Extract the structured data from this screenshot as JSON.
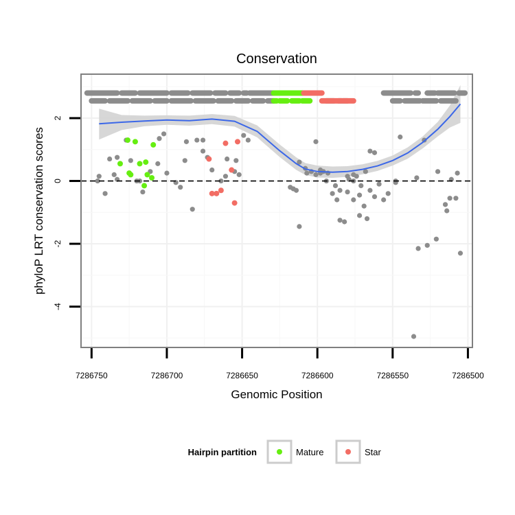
{
  "chart_data": {
    "type": "scatter",
    "title": "Conservation",
    "xlabel": "Genomic Position",
    "ylabel": "phyloP LRT conservation scores",
    "x_reversed": true,
    "xlim": [
      7286500,
      7286750
    ],
    "ylim": [
      -5.3,
      3.4
    ],
    "x_ticks": [
      7286750,
      7286700,
      7286650,
      7286600,
      7286550,
      7286500
    ],
    "x_tick_labels": [
      "7286750",
      "7286700",
      "7286650",
      "7286600",
      "7286550",
      "7286500"
    ],
    "y_ticks": [
      2,
      0,
      -2,
      -4
    ],
    "y_tick_labels": [
      "2",
      "0",
      "-2",
      "-4"
    ],
    "reference_line": {
      "y": 0,
      "style": "dashed"
    },
    "grid": true,
    "colors": {
      "other": "#8c8c8c",
      "mature": "#66ee11",
      "star": "#f26d64",
      "smooth": "#3b67e8",
      "ribbon": "#d3d3d3",
      "panel_border": "#7f7f7f"
    },
    "legend": {
      "title": "Hairpin partition",
      "position": "bottom",
      "entries": [
        {
          "label": "Mature",
          "color": "#66ee11"
        },
        {
          "label": "Star",
          "color": "#f26d64"
        }
      ]
    },
    "series": [
      {
        "key": "other",
        "x": [
          7286746,
          7286741,
          7286738,
          7286735,
          7286733,
          7286727,
          7286724,
          7286718,
          7286716,
          7286713,
          7286711,
          7286705,
          7286702,
          7286700,
          7286694,
          7286691,
          7286688,
          7286683,
          7286680,
          7286676,
          7286673,
          7286670,
          7286664,
          7286661,
          7286655,
          7286652,
          7286649,
          7286646,
          7286612,
          7286607,
          7286601,
          7286596,
          7286593,
          7286590,
          7286587,
          7286585,
          7286582,
          7286579,
          7286576,
          7286574,
          7286571,
          7286568,
          7286565,
          7286562,
          7286559,
          7286556,
          7286553,
          7286548,
          7286545,
          7286536,
          7286533,
          7286527,
          7286521,
          7286515,
          7286512,
          7286507,
          7286594,
          7286598,
          7286618,
          7286614,
          7286580,
          7286576,
          7286565,
          7286562,
          7286576,
          7286572,
          7286588,
          7286585,
          7286569,
          7286567,
          7286580,
          7286572,
          7286616,
          7286548,
          7286534,
          7286529,
          7286520,
          7286514,
          7286511,
          7286508,
          7286505,
          7286660,
          7286676,
          7286687,
          7286706,
          7286720,
          7286733,
          7286745,
          7286657,
          7286654,
          7286612,
          7286608,
          7286604,
          7286601,
          7286598
        ],
        "y": [
          0.0,
          -0.4,
          0.7,
          0.2,
          0.05,
          1.3,
          0.65,
          0.0,
          -0.35,
          0.2,
          0.3,
          1.35,
          1.5,
          0.25,
          -0.05,
          -0.2,
          0.65,
          -0.9,
          1.3,
          1.3,
          0.75,
          0.35,
          0.0,
          0.15,
          0.3,
          0.2,
          1.45,
          1.3,
          -1.45,
          0.25,
          1.25,
          0.3,
          0.25,
          -0.4,
          -0.6,
          -1.25,
          -1.3,
          0.05,
          0.2,
          0.15,
          -0.15,
          0.3,
          -0.3,
          -0.5,
          -0.1,
          -0.6,
          -0.4,
          -0.05,
          1.4,
          -4.95,
          -2.15,
          -2.05,
          -1.85,
          -0.75,
          -0.55,
          0.25,
          0.0,
          0.25,
          -0.2,
          -0.3,
          0.15,
          0.0,
          0.95,
          0.9,
          -0.6,
          -1.1,
          -0.15,
          -0.3,
          -0.8,
          -1.2,
          -0.35,
          -0.45,
          -0.25,
          0.0,
          0.1,
          1.3,
          0.3,
          -0.95,
          0.05,
          -0.55,
          -2.3,
          0.7,
          0.95,
          1.25,
          0.55,
          0.0,
          0.75,
          0.15,
          0.35,
          0.65,
          0.6,
          0.4,
          0.3,
          0.2,
          0.35
        ]
      },
      {
        "key": "mature",
        "x": [
          7286731,
          7286726,
          7286725,
          7286724,
          7286721,
          7286718,
          7286715,
          7286714,
          7286713,
          7286710,
          7286709
        ],
        "y": [
          0.55,
          1.3,
          0.25,
          0.2,
          1.25,
          0.55,
          -0.15,
          0.6,
          0.2,
          0.1,
          1.15
        ],
        "name": "Mature"
      },
      {
        "key": "star",
        "x": [
          7286672,
          7286670,
          7286667,
          7286664,
          7286661,
          7286657,
          7286655,
          7286653
        ],
        "y": [
          0.7,
          -0.4,
          -0.4,
          -0.3,
          1.2,
          0.35,
          -0.7,
          1.25
        ],
        "name": "Star"
      }
    ],
    "rug": {
      "upper": {
        "y": 2.8,
        "other": [
          [
            7286753,
            7286733
          ],
          [
            7286730,
            7286721
          ],
          [
            7286718,
            7286700
          ],
          [
            7286697,
            7286686
          ],
          [
            7286683,
            7286671
          ],
          [
            7286668,
            7286661
          ],
          [
            7286658,
            7286652
          ],
          [
            7286649,
            7286647
          ],
          [
            7286645,
            7286629
          ],
          [
            7286556,
            7286538
          ],
          [
            7286535,
            7286533
          ],
          [
            7286527,
            7286522
          ],
          [
            7286520,
            7286509
          ],
          [
            7286506,
            7286502
          ]
        ],
        "mature": [
          [
            7286629,
            7286609
          ]
        ],
        "star": [
          [
            7286609,
            7286597
          ]
        ]
      },
      "lower": {
        "y": 2.55,
        "other": [
          [
            7286750,
            7286741
          ],
          [
            7286738,
            7286726
          ],
          [
            7286723,
            7286711
          ],
          [
            7286708,
            7286700
          ],
          [
            7286697,
            7286684
          ],
          [
            7286681,
            7286669
          ],
          [
            7286666,
            7286657
          ],
          [
            7286654,
            7286646
          ],
          [
            7286643,
            7286636
          ],
          [
            7286633,
            7286629
          ],
          [
            7286594,
            7286589
          ],
          [
            7286586,
            7286580
          ],
          [
            7286550,
            7286545
          ],
          [
            7286542,
            7286532
          ],
          [
            7286530,
            7286521
          ],
          [
            7286518,
            7286508
          ]
        ],
        "mature": [
          [
            7286629,
            7286627
          ],
          [
            7286625,
            7286620
          ],
          [
            7286617,
            7286612
          ],
          [
            7286610,
            7286605
          ]
        ],
        "star": [
          [
            7286597,
            7286584
          ],
          [
            7286583,
            7286576
          ]
        ]
      }
    },
    "smooth": {
      "x": [
        7286745,
        7286730,
        7286715,
        7286700,
        7286685,
        7286670,
        7286655,
        7286640,
        7286625,
        7286614,
        7286608,
        7286600,
        7286590,
        7286580,
        7286570,
        7286560,
        7286550,
        7286540,
        7286530,
        7286520,
        7286512,
        7286505
      ],
      "y": [
        1.82,
        1.87,
        1.91,
        1.94,
        1.92,
        1.97,
        1.9,
        1.58,
        0.96,
        0.55,
        0.38,
        0.3,
        0.28,
        0.3,
        0.37,
        0.48,
        0.65,
        0.89,
        1.23,
        1.65,
        2.05,
        2.45
      ],
      "upper": [
        2.3,
        2.1,
        2.08,
        2.09,
        2.08,
        2.13,
        2.07,
        1.77,
        1.16,
        0.75,
        0.57,
        0.49,
        0.46,
        0.47,
        0.53,
        0.64,
        0.81,
        1.07,
        1.42,
        1.88,
        2.4,
        3.05
      ],
      "lower": [
        1.32,
        1.62,
        1.74,
        1.79,
        1.76,
        1.81,
        1.73,
        1.39,
        0.76,
        0.35,
        0.19,
        0.11,
        0.1,
        0.13,
        0.21,
        0.32,
        0.49,
        0.71,
        1.04,
        1.42,
        1.7,
        1.85
      ]
    }
  }
}
